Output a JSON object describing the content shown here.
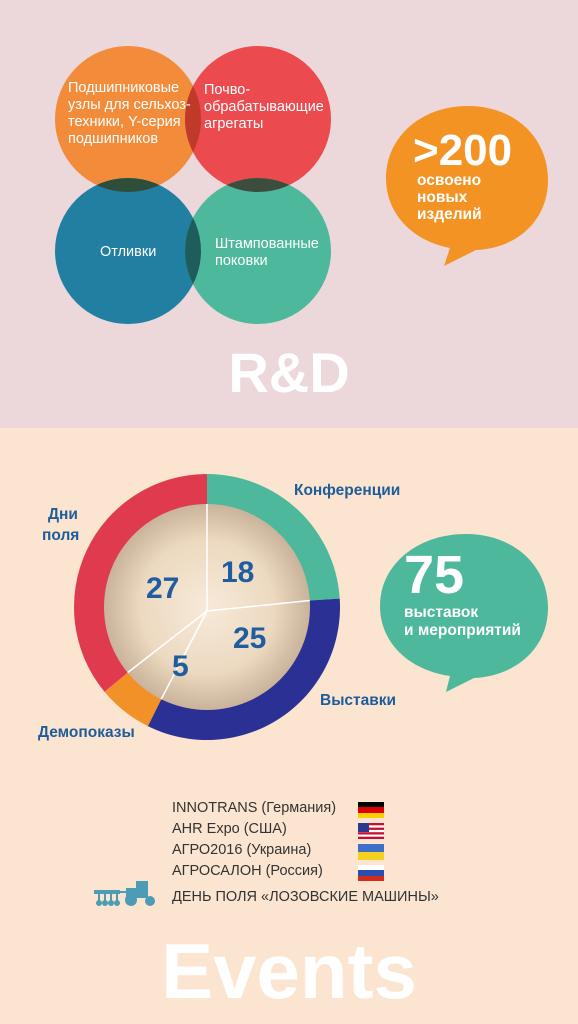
{
  "rd": {
    "circles": [
      {
        "text": "Подшипниковые узлы для сельхоз-техники, Y-серия подшипников",
        "color": "#f28c3b"
      },
      {
        "text": "Почво-обрабатывающие агрегаты",
        "color": "#eb4a4e"
      },
      {
        "text": "Отливки",
        "color": "#217fa2"
      },
      {
        "text": "Штампованные поковки",
        "color": "#4db89b"
      }
    ],
    "callout": {
      "number": ">200",
      "line1": "освоено",
      "line2": "новых",
      "line3": "изделий",
      "color": "#f39324"
    },
    "title": "R&D"
  },
  "events": {
    "chart_data": {
      "type": "pie",
      "labels": [
        "Конференции",
        "Выставки",
        "Демопоказы",
        "Дни поля"
      ],
      "values": [
        18,
        25,
        5,
        27
      ],
      "colors": [
        "#4db89b",
        "#2b3194",
        "#f29127",
        "#e03a4f"
      ]
    },
    "label_dni": "Дни",
    "label_polya": "поля",
    "callout": {
      "number": "75",
      "line1": "выставок",
      "line2": "и мероприятий",
      "color": "#4db89b"
    },
    "list": [
      {
        "text": "INNOTRANS (Германия)",
        "flag": "germany-flag-icon"
      },
      {
        "text": "AHR Expo (США)",
        "flag": "usa-flag-icon"
      },
      {
        "text": "АГРО2016 (Украина)",
        "flag": "ukraine-flag-icon"
      },
      {
        "text": "АГРОСАЛОН (Россия)",
        "flag": "russia-flag-icon"
      }
    ],
    "field_day": {
      "text": "ДЕНЬ ПОЛЯ «ЛОЗОВСКИЕ МАШИНЫ»",
      "icon": "tractor-icon"
    },
    "title": "Events"
  }
}
